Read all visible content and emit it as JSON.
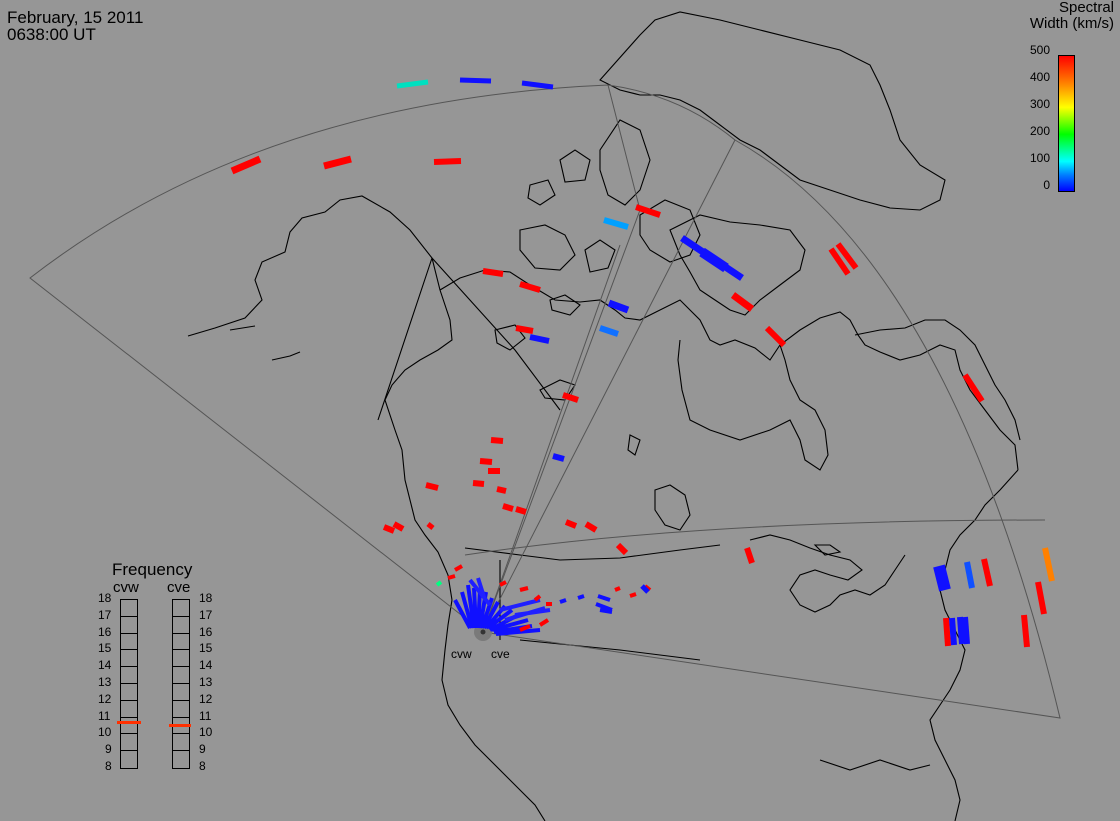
{
  "header": {
    "date": "February, 15 2011",
    "time": "0638:00 UT"
  },
  "colorbar": {
    "title_line1": "Spectral",
    "title_line2": "Width (km/s)",
    "ticks": [
      "500",
      "400",
      "300",
      "200",
      "100",
      "0"
    ]
  },
  "frequency_panel": {
    "title": "Frequency",
    "radars": [
      "cvw",
      "cve"
    ],
    "ticks": [
      "18",
      "17",
      "16",
      "15",
      "14",
      "13",
      "12",
      "11",
      "10",
      "9",
      "8"
    ],
    "cvw_value_mhz": 10.7,
    "cve_value_mhz": 10.5
  },
  "radar_labels": [
    "cvw",
    "cve"
  ],
  "colors": {
    "background": "#969696",
    "low": "#0000ff",
    "mid": "#00a0ff",
    "high": "#ff0000",
    "teal": "#00e0c0",
    "orange": "#ff8000"
  }
}
